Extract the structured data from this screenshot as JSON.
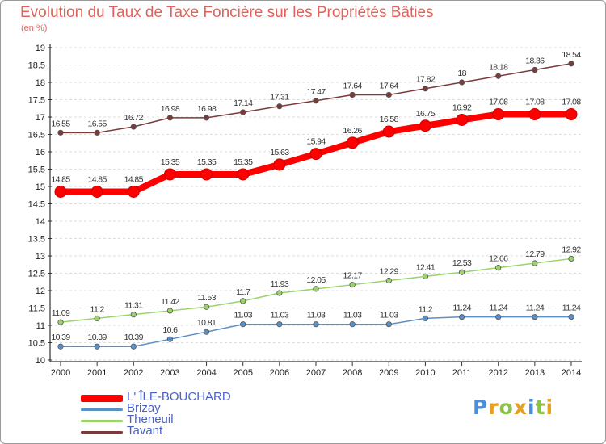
{
  "title": "Evolution du Taux de Taxe Foncière sur les Propriétés Bâties",
  "chart_data": {
    "type": "line",
    "title": "Evolution du Taux de Taxe Foncière sur les Propriétés Bâties",
    "ylabel": "(en %)",
    "xlabel": "",
    "x": [
      "2000",
      "2001",
      "2002",
      "2003",
      "2004",
      "2005",
      "2006",
      "2007",
      "2008",
      "2009",
      "2010",
      "2011",
      "2012",
      "2013",
      "2014"
    ],
    "ylim": [
      10,
      19
    ],
    "yticks": [
      "10",
      "10.5",
      "11",
      "11.5",
      "12",
      "12.5",
      "13",
      "13.5",
      "14",
      "14.5",
      "15",
      "15.5",
      "16",
      "16.5",
      "17",
      "17.5",
      "18",
      "18.5",
      "19"
    ],
    "grid": "horizontal dashed",
    "series": [
      {
        "name": "L' ÎLE-BOUCHARD",
        "color": "#ff0000",
        "values": [
          14.85,
          14.85,
          14.85,
          15.35,
          15.35,
          15.35,
          15.63,
          15.94,
          16.26,
          16.58,
          16.75,
          16.92,
          17.08,
          17.08,
          17.08
        ],
        "labels": [
          "14.85",
          "14.85",
          "14.85",
          "15.35",
          "15.35",
          "15.35",
          "15.63",
          "15.94",
          "16.26",
          "16.58",
          "16.75",
          "16.92",
          "17.08",
          "17.08",
          "17.08"
        ]
      },
      {
        "name": "Brizay",
        "color": "#5b8fc7",
        "values": [
          10.39,
          10.39,
          10.39,
          10.6,
          10.81,
          11.03,
          11.03,
          11.03,
          11.03,
          11.03,
          11.2,
          11.24,
          11.24,
          11.24,
          11.24
        ],
        "labels": [
          "10.39",
          "10.39",
          "10.39",
          "10.6",
          "10.81",
          "11.03",
          "11.03",
          "11.03",
          "11.03",
          "11.03",
          "11.2",
          "11.24",
          "11.24",
          "11.24",
          "11.24"
        ]
      },
      {
        "name": "Theneuil",
        "color": "#9ad36a",
        "values": [
          11.09,
          11.2,
          11.31,
          11.42,
          11.53,
          11.7,
          11.93,
          12.05,
          12.17,
          12.29,
          12.41,
          12.53,
          12.66,
          12.79,
          12.92
        ],
        "labels": [
          "11.09",
          "11.2",
          "11.31",
          "11.42",
          "11.53",
          "11.7",
          "11.93",
          "12.05",
          "12.17",
          "12.29",
          "12.41",
          "12.53",
          "12.66",
          "12.79",
          "12.92"
        ]
      },
      {
        "name": "Tavant",
        "color": "#7a3b3b",
        "values": [
          16.55,
          16.55,
          16.72,
          16.98,
          16.98,
          17.14,
          17.31,
          17.47,
          17.64,
          17.64,
          17.82,
          18,
          18.18,
          18.36,
          18.54
        ],
        "labels": [
          "16.55",
          "16.55",
          "16.72",
          "16.98",
          "16.98",
          "17.14",
          "17.31",
          "17.47",
          "17.64",
          "17.64",
          "17.82",
          "18",
          "18.18",
          "18.36",
          "18.54"
        ]
      }
    ]
  },
  "legend": [
    {
      "label": "L' ÎLE-BOUCHARD",
      "color": "#ff0000"
    },
    {
      "label": "Brizay",
      "color": "#5b8fc7"
    },
    {
      "label": "Theneuil",
      "color": "#9ad36a"
    },
    {
      "label": "Tavant",
      "color": "#7a3b3b"
    }
  ],
  "logo": {
    "text": "Proxiti",
    "colors": [
      "#4a90d9",
      "#e8a020",
      "#8bc34a",
      "#e8a020",
      "#4a90d9",
      "#8bc34a",
      "#e8a020"
    ]
  }
}
